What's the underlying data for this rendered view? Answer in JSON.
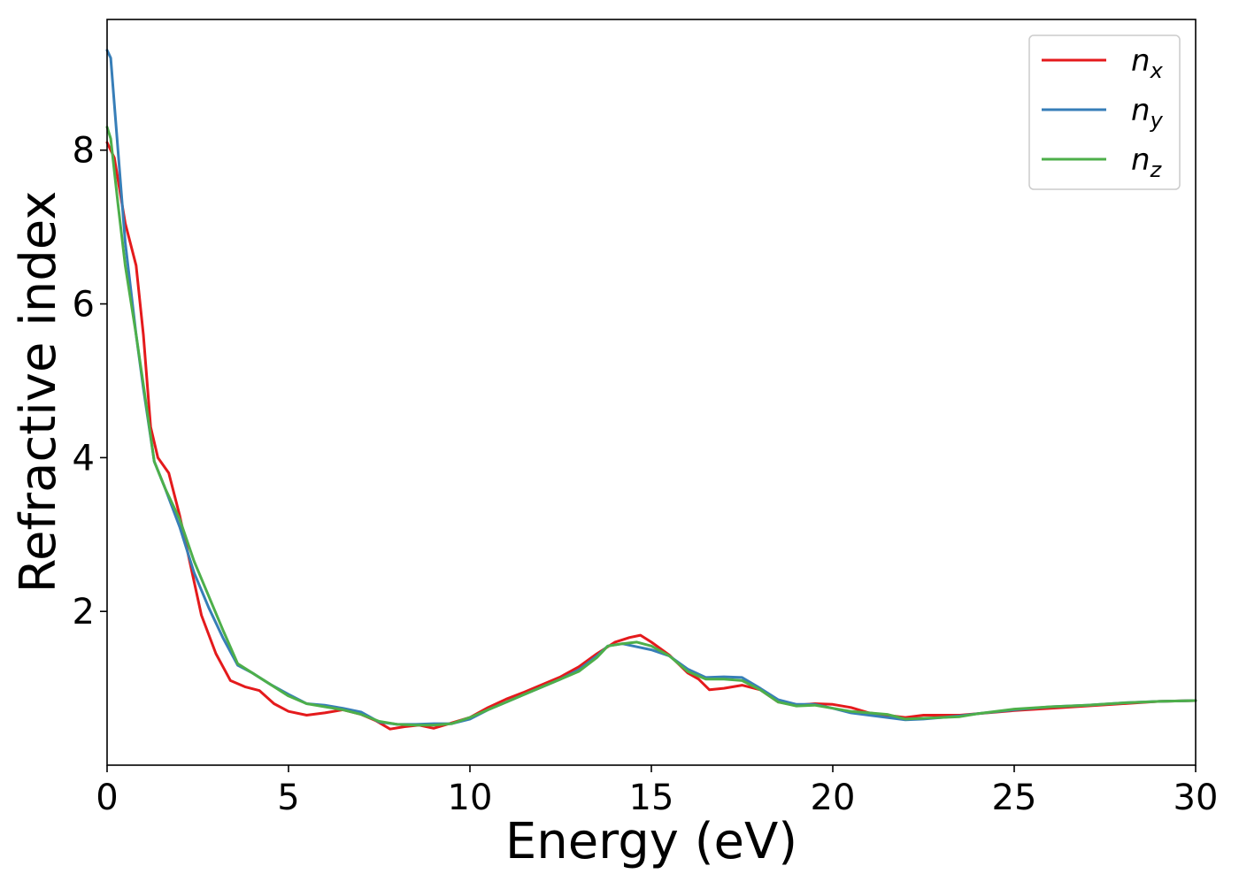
{
  "chart_data": {
    "type": "line",
    "title": "",
    "xlabel": "Energy (eV)",
    "ylabel": "Refractive index",
    "xlim": [
      0,
      30
    ],
    "ylim": [
      0,
      9.7
    ],
    "xticks": [
      0,
      5,
      10,
      15,
      20,
      25,
      30
    ],
    "yticks": [
      2,
      4,
      6,
      8
    ],
    "grid": false,
    "legend_position": "top-right",
    "series": [
      {
        "name": "n",
        "subscript": "x",
        "color": "#e41a1c",
        "points": [
          [
            0,
            8.1
          ],
          [
            0.2,
            7.9
          ],
          [
            0.5,
            7.05
          ],
          [
            0.8,
            6.5
          ],
          [
            1.0,
            5.6
          ],
          [
            1.2,
            4.4
          ],
          [
            1.4,
            4.0
          ],
          [
            1.7,
            3.8
          ],
          [
            2.0,
            3.25
          ],
          [
            2.3,
            2.6
          ],
          [
            2.6,
            1.95
          ],
          [
            3.0,
            1.45
          ],
          [
            3.4,
            1.1
          ],
          [
            3.8,
            1.02
          ],
          [
            4.2,
            0.97
          ],
          [
            4.6,
            0.8
          ],
          [
            5.0,
            0.7
          ],
          [
            5.5,
            0.65
          ],
          [
            6.0,
            0.68
          ],
          [
            6.5,
            0.72
          ],
          [
            7.0,
            0.66
          ],
          [
            7.4,
            0.58
          ],
          [
            7.8,
            0.47
          ],
          [
            8.2,
            0.5
          ],
          [
            8.6,
            0.52
          ],
          [
            9.0,
            0.48
          ],
          [
            9.5,
            0.55
          ],
          [
            10.0,
            0.62
          ],
          [
            10.5,
            0.75
          ],
          [
            11.0,
            0.86
          ],
          [
            11.5,
            0.95
          ],
          [
            12.0,
            1.05
          ],
          [
            12.5,
            1.15
          ],
          [
            13.0,
            1.28
          ],
          [
            13.5,
            1.45
          ],
          [
            14.0,
            1.6
          ],
          [
            14.4,
            1.66
          ],
          [
            14.7,
            1.69
          ],
          [
            15.0,
            1.6
          ],
          [
            15.5,
            1.43
          ],
          [
            16.0,
            1.2
          ],
          [
            16.3,
            1.12
          ],
          [
            16.6,
            0.98
          ],
          [
            17.0,
            1.0
          ],
          [
            17.5,
            1.04
          ],
          [
            18.0,
            0.98
          ],
          [
            18.5,
            0.82
          ],
          [
            19.0,
            0.78
          ],
          [
            19.5,
            0.8
          ],
          [
            20.0,
            0.79
          ],
          [
            20.5,
            0.75
          ],
          [
            21.0,
            0.68
          ],
          [
            21.5,
            0.65
          ],
          [
            22.0,
            0.62
          ],
          [
            22.5,
            0.65
          ],
          [
            23.0,
            0.65
          ],
          [
            23.5,
            0.65
          ],
          [
            24.0,
            0.67
          ],
          [
            25.0,
            0.71
          ],
          [
            26.0,
            0.74
          ],
          [
            27.0,
            0.77
          ],
          [
            28.0,
            0.8
          ],
          [
            29.0,
            0.83
          ],
          [
            30.0,
            0.84
          ]
        ]
      },
      {
        "name": "n",
        "subscript": "y",
        "color": "#377eb8",
        "points": [
          [
            0,
            9.3
          ],
          [
            0.1,
            9.2
          ],
          [
            0.3,
            8.0
          ],
          [
            0.5,
            6.8
          ],
          [
            0.8,
            5.6
          ],
          [
            1.0,
            4.9
          ],
          [
            1.3,
            3.95
          ],
          [
            1.6,
            3.6
          ],
          [
            2.0,
            3.1
          ],
          [
            2.4,
            2.5
          ],
          [
            2.8,
            2.05
          ],
          [
            3.2,
            1.65
          ],
          [
            3.6,
            1.3
          ],
          [
            4.0,
            1.2
          ],
          [
            4.5,
            1.05
          ],
          [
            5.0,
            0.92
          ],
          [
            5.5,
            0.8
          ],
          [
            6.0,
            0.78
          ],
          [
            6.5,
            0.74
          ],
          [
            7.0,
            0.69
          ],
          [
            7.5,
            0.56
          ],
          [
            8.0,
            0.53
          ],
          [
            8.5,
            0.53
          ],
          [
            9.0,
            0.54
          ],
          [
            9.5,
            0.54
          ],
          [
            10.0,
            0.6
          ],
          [
            10.5,
            0.72
          ],
          [
            11.0,
            0.82
          ],
          [
            11.5,
            0.92
          ],
          [
            12.0,
            1.02
          ],
          [
            12.5,
            1.12
          ],
          [
            13.0,
            1.24
          ],
          [
            13.5,
            1.42
          ],
          [
            13.8,
            1.55
          ],
          [
            14.2,
            1.58
          ],
          [
            14.6,
            1.54
          ],
          [
            15.0,
            1.5
          ],
          [
            15.5,
            1.42
          ],
          [
            16.0,
            1.25
          ],
          [
            16.5,
            1.14
          ],
          [
            17.0,
            1.15
          ],
          [
            17.5,
            1.14
          ],
          [
            18.0,
            1.0
          ],
          [
            18.5,
            0.85
          ],
          [
            19.0,
            0.79
          ],
          [
            19.5,
            0.79
          ],
          [
            20.0,
            0.74
          ],
          [
            20.5,
            0.68
          ],
          [
            21.0,
            0.65
          ],
          [
            21.5,
            0.62
          ],
          [
            22.0,
            0.59
          ],
          [
            22.5,
            0.6
          ],
          [
            23.0,
            0.62
          ],
          [
            23.5,
            0.64
          ],
          [
            24.0,
            0.67
          ],
          [
            25.0,
            0.72
          ],
          [
            26.0,
            0.76
          ],
          [
            27.0,
            0.78
          ],
          [
            28.0,
            0.81
          ],
          [
            29.0,
            0.83
          ],
          [
            30.0,
            0.84
          ]
        ]
      },
      {
        "name": "n",
        "subscript": "z",
        "color": "#4daf4a",
        "points": [
          [
            0,
            8.3
          ],
          [
            0.1,
            8.15
          ],
          [
            0.3,
            7.3
          ],
          [
            0.5,
            6.5
          ],
          [
            0.8,
            5.6
          ],
          [
            1.0,
            4.95
          ],
          [
            1.3,
            3.95
          ],
          [
            1.6,
            3.6
          ],
          [
            2.0,
            3.2
          ],
          [
            2.4,
            2.65
          ],
          [
            2.8,
            2.2
          ],
          [
            3.2,
            1.75
          ],
          [
            3.6,
            1.32
          ],
          [
            4.0,
            1.2
          ],
          [
            4.5,
            1.05
          ],
          [
            5.0,
            0.9
          ],
          [
            5.5,
            0.8
          ],
          [
            6.0,
            0.76
          ],
          [
            6.5,
            0.72
          ],
          [
            7.0,
            0.66
          ],
          [
            7.5,
            0.57
          ],
          [
            8.0,
            0.53
          ],
          [
            8.5,
            0.52
          ],
          [
            9.0,
            0.52
          ],
          [
            9.5,
            0.54
          ],
          [
            10.0,
            0.62
          ],
          [
            10.5,
            0.72
          ],
          [
            11.0,
            0.82
          ],
          [
            11.5,
            0.92
          ],
          [
            12.0,
            1.02
          ],
          [
            12.5,
            1.12
          ],
          [
            13.0,
            1.22
          ],
          [
            13.5,
            1.4
          ],
          [
            13.8,
            1.55
          ],
          [
            14.2,
            1.58
          ],
          [
            14.6,
            1.6
          ],
          [
            15.0,
            1.55
          ],
          [
            15.5,
            1.42
          ],
          [
            16.0,
            1.22
          ],
          [
            16.5,
            1.12
          ],
          [
            17.0,
            1.12
          ],
          [
            17.5,
            1.1
          ],
          [
            18.0,
            0.98
          ],
          [
            18.5,
            0.82
          ],
          [
            19.0,
            0.77
          ],
          [
            19.5,
            0.78
          ],
          [
            20.0,
            0.74
          ],
          [
            20.5,
            0.7
          ],
          [
            21.0,
            0.68
          ],
          [
            21.5,
            0.66
          ],
          [
            22.0,
            0.6
          ],
          [
            22.5,
            0.61
          ],
          [
            23.0,
            0.62
          ],
          [
            23.5,
            0.63
          ],
          [
            24.0,
            0.67
          ],
          [
            25.0,
            0.73
          ],
          [
            26.0,
            0.76
          ],
          [
            27.0,
            0.78
          ],
          [
            28.0,
            0.81
          ],
          [
            29.0,
            0.83
          ],
          [
            30.0,
            0.84
          ]
        ]
      }
    ]
  }
}
